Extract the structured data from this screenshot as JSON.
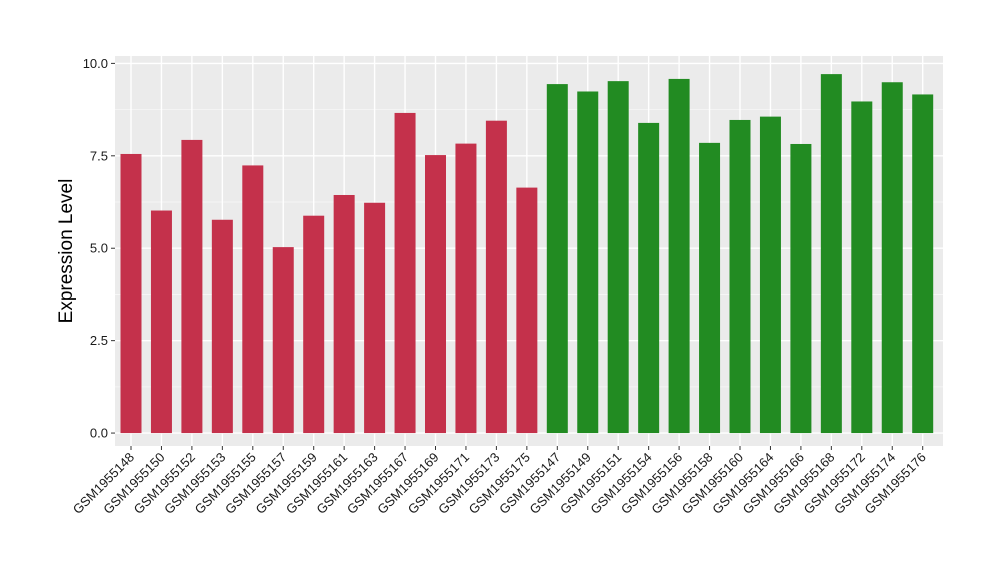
{
  "chart_data": {
    "type": "bar",
    "xlabel": "",
    "ylabel": "Expression Level",
    "ylim": [
      -0.35,
      10.2
    ],
    "yticks": [
      0.0,
      2.5,
      5.0,
      7.5,
      10.0
    ],
    "ytick_labels": [
      "0.0",
      "2.5",
      "5.0",
      "7.5",
      "10.0"
    ],
    "grid": true,
    "legend": "none",
    "panel_background": "#ebebeb",
    "categories": [
      "GSM1955148",
      "GSM1955150",
      "GSM1955152",
      "GSM1955153",
      "GSM1955155",
      "GSM1955157",
      "GSM1955159",
      "GSM1955161",
      "GSM1955163",
      "GSM1955167",
      "GSM1955169",
      "GSM1955171",
      "GSM1955173",
      "GSM1955175",
      "GSM1955147",
      "GSM1955149",
      "GSM1955151",
      "GSM1955154",
      "GSM1955156",
      "GSM1955158",
      "GSM1955160",
      "GSM1955164",
      "GSM1955166",
      "GSM1955168",
      "GSM1955172",
      "GSM1955174",
      "GSM1955176"
    ],
    "values": [
      7.55,
      6.02,
      7.93,
      5.77,
      7.24,
      5.03,
      5.88,
      6.44,
      6.23,
      8.66,
      7.52,
      7.83,
      8.45,
      6.64,
      9.44,
      9.24,
      9.52,
      8.39,
      9.58,
      7.85,
      8.47,
      8.56,
      7.82,
      9.71,
      8.97,
      9.49,
      9.16
    ],
    "bar_colors": [
      "#c4314b",
      "#c4314b",
      "#c4314b",
      "#c4314b",
      "#c4314b",
      "#c4314b",
      "#c4314b",
      "#c4314b",
      "#c4314b",
      "#c4314b",
      "#c4314b",
      "#c4314b",
      "#c4314b",
      "#c4314b",
      "#228b22",
      "#228b22",
      "#228b22",
      "#228b22",
      "#228b22",
      "#228b22",
      "#228b22",
      "#228b22",
      "#228b22",
      "#228b22",
      "#228b22",
      "#228b22",
      "#228b22"
    ]
  }
}
